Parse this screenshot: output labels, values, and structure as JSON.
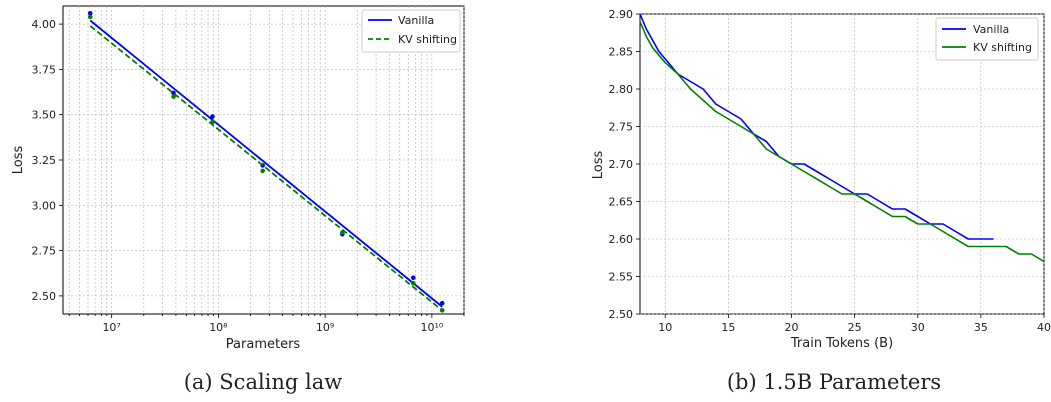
{
  "chart_data": [
    {
      "type": "scatter",
      "caption": "(a) Scaling law",
      "xlabel": "Parameters",
      "ylabel": "Loss",
      "xscale": "log",
      "xlim": [
        3500000,
        20000000000
      ],
      "ylim": [
        2.4,
        4.1
      ],
      "x_tick_values": [
        10000000,
        100000000,
        1000000000,
        10000000000
      ],
      "x_tick_labels": [
        "10⁷",
        "10⁸",
        "10⁹",
        "10¹⁰"
      ],
      "y_ticks": [
        "2.50",
        "2.75",
        "3.00",
        "3.25",
        "3.50",
        "3.75",
        "4.00"
      ],
      "grid": true,
      "legend": {
        "position": "top-right",
        "entries": [
          "Vanilla",
          "KV shifting"
        ]
      },
      "series": [
        {
          "name": "Vanilla",
          "color": "#0000ff",
          "line_style": "solid",
          "points": [
            [
              6300000,
              4.06
            ],
            [
              38000000,
              3.62
            ],
            [
              88000000,
              3.49
            ],
            [
              260000000,
              3.22
            ],
            [
              1450000000,
              2.84
            ],
            [
              6700000000,
              2.6
            ],
            [
              12500000000,
              2.46
            ]
          ],
          "fit": [
            [
              6300000,
              4.02
            ],
            [
              12500000000,
              2.44
            ]
          ]
        },
        {
          "name": "KV shifting",
          "color": "#008000",
          "line_style": "dashed",
          "points": [
            [
              6300000,
              4.04
            ],
            [
              38000000,
              3.6
            ],
            [
              88000000,
              3.46
            ],
            [
              260000000,
              3.19
            ],
            [
              1450000000,
              2.85
            ],
            [
              6700000000,
              2.57
            ],
            [
              12500000000,
              2.42
            ]
          ],
          "fit": [
            [
              6300000,
              3.99
            ],
            [
              12500000000,
              2.42
            ]
          ]
        }
      ]
    },
    {
      "type": "line",
      "caption": "(b) 1.5B Parameters",
      "xlabel": "Train Tokens (B)",
      "ylabel": "Loss",
      "xlim": [
        8,
        40
      ],
      "ylim": [
        2.5,
        2.9
      ],
      "x_ticks": [
        10,
        15,
        20,
        25,
        30,
        35,
        40
      ],
      "y_ticks": [
        "2.50",
        "2.55",
        "2.60",
        "2.65",
        "2.70",
        "2.75",
        "2.80",
        "2.85",
        "2.90"
      ],
      "grid": true,
      "legend": {
        "position": "top-right",
        "entries": [
          "Vanilla",
          "KV shifting"
        ]
      },
      "series": [
        {
          "name": "Vanilla",
          "color": "#0000ff",
          "x": [
            8,
            8.5,
            9,
            9.5,
            10,
            11,
            12,
            13,
            14,
            15,
            16,
            17,
            18,
            19,
            20,
            21,
            22,
            23,
            24,
            25,
            26,
            27,
            28,
            29,
            30,
            31,
            32,
            33,
            34,
            35,
            36
          ],
          "y": [
            2.9,
            2.88,
            2.865,
            2.85,
            2.84,
            2.82,
            2.81,
            2.8,
            2.78,
            2.77,
            2.76,
            2.74,
            2.73,
            2.71,
            2.7,
            2.7,
            2.69,
            2.68,
            2.67,
            2.66,
            2.66,
            2.65,
            2.64,
            2.64,
            2.63,
            2.62,
            2.62,
            2.61,
            2.6,
            2.6,
            2.6
          ]
        },
        {
          "name": "KV shifting",
          "color": "#008000",
          "x": [
            8,
            8.5,
            9,
            9.5,
            10,
            11,
            12,
            13,
            14,
            15,
            16,
            17,
            18,
            19,
            20,
            21,
            22,
            23,
            24,
            25,
            26,
            27,
            28,
            29,
            30,
            31,
            32,
            33,
            34,
            35,
            36,
            37,
            38,
            39,
            40
          ],
          "y": [
            2.89,
            2.87,
            2.855,
            2.845,
            2.835,
            2.82,
            2.8,
            2.785,
            2.77,
            2.76,
            2.75,
            2.74,
            2.72,
            2.71,
            2.7,
            2.69,
            2.68,
            2.67,
            2.66,
            2.66,
            2.65,
            2.64,
            2.63,
            2.63,
            2.62,
            2.62,
            2.61,
            2.6,
            2.59,
            2.59,
            2.59,
            2.59,
            2.58,
            2.58,
            2.57
          ]
        }
      ]
    }
  ]
}
